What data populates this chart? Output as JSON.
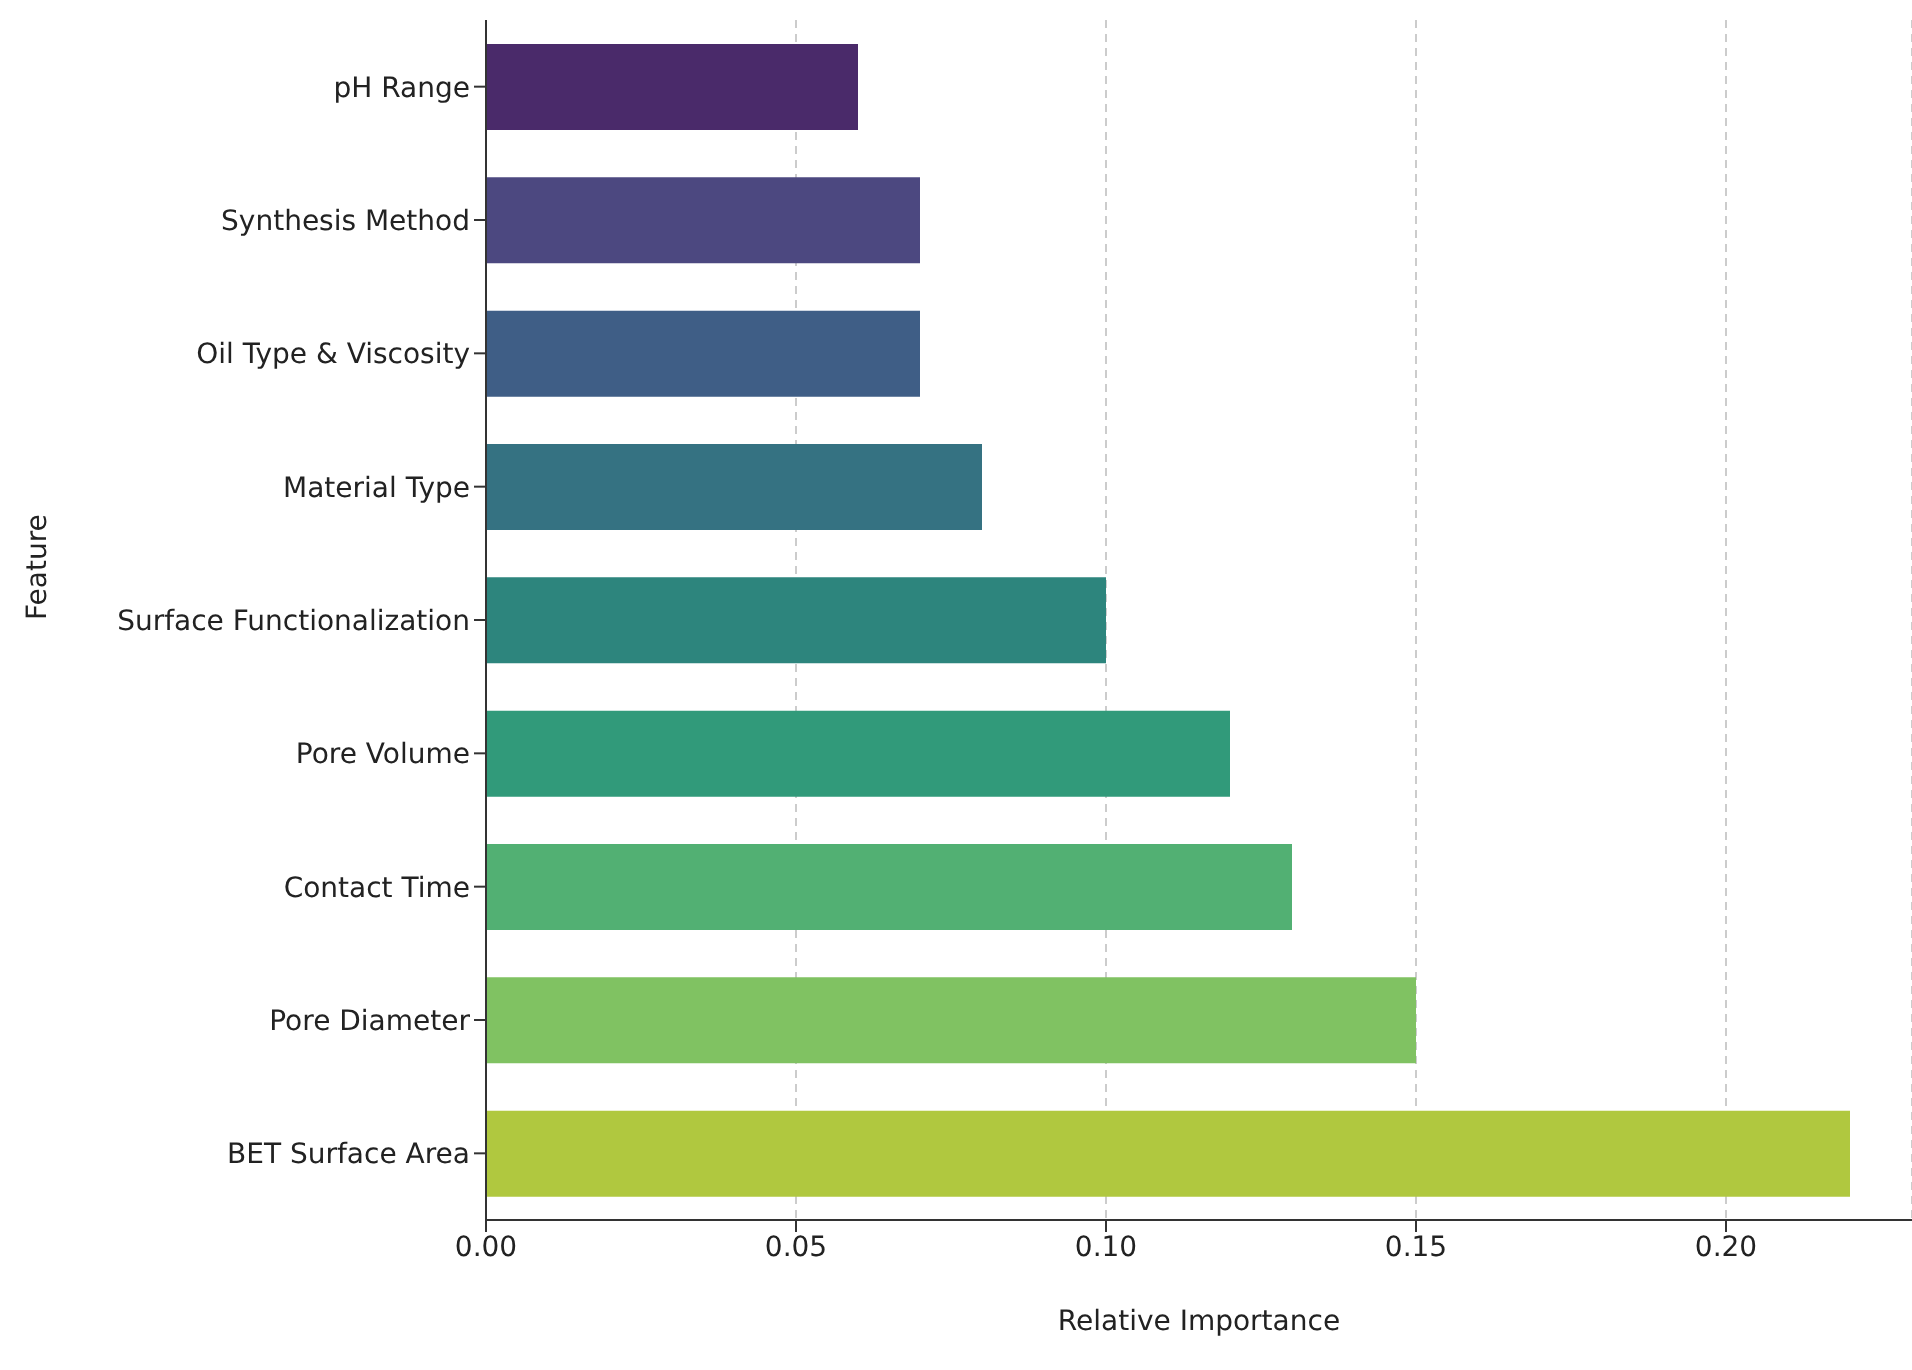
{
  "chart_data": {
    "type": "bar",
    "orientation": "horizontal",
    "xlabel": "Relative Importance",
    "ylabel": "Feature",
    "categories": [
      "pH Range",
      "Synthesis Method",
      "Oil Type & Viscosity",
      "Material Type",
      "Surface Functionalization",
      "Pore Volume",
      "Contact Time",
      "Pore Diameter",
      "BET Surface Area"
    ],
    "values": [
      0.06,
      0.07,
      0.07,
      0.08,
      0.1,
      0.12,
      0.13,
      0.15,
      0.22
    ],
    "colors": [
      "#4a2a6a",
      "#4c4880",
      "#3f5e86",
      "#357282",
      "#2d857d",
      "#319a7a",
      "#52b073",
      "#80c262",
      "#b0c83f"
    ],
    "xlim": [
      0,
      0.23
    ],
    "xticks": [
      {
        "value": 0,
        "label": "0.00"
      },
      {
        "value": 0.05,
        "label": "0.05"
      },
      {
        "value": 0.1,
        "label": "0.10"
      },
      {
        "value": 0.15,
        "label": "0.15"
      },
      {
        "value": 0.2,
        "label": "0.20"
      }
    ],
    "grid": "x"
  }
}
